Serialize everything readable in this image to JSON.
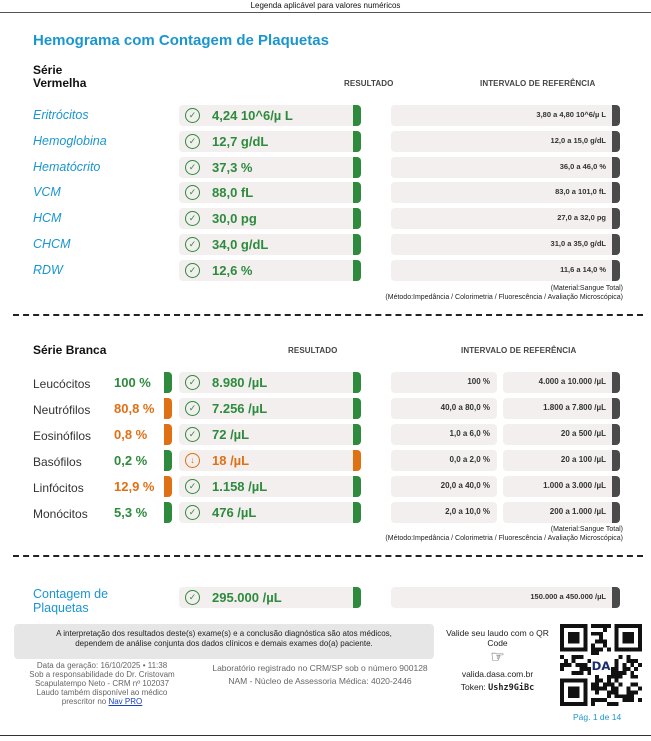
{
  "top_legend": "Legenda aplicável para valores numéricos",
  "title": "Hemograma com Contagem de Plaquetas",
  "serie_vermelha": {
    "title_line1": "Série",
    "title_line2": "Vermelha",
    "col_result": "RESULTADO",
    "col_ref": "INTERVALO DE REFERÊNCIA",
    "rows": [
      {
        "label": "Eritrócitos",
        "value": "4,24 10^6/µ L",
        "ref": "3,80 a 4,80 10^6/µ L"
      },
      {
        "label": "Hemoglobina",
        "value": "12,7 g/dL",
        "ref": "12,0 a 15,0 g/dL"
      },
      {
        "label": "Hematócrito",
        "value": "37,3 %",
        "ref": "36,0 a 46,0 %"
      },
      {
        "label": "VCM",
        "value": "88,0 fL",
        "ref": "83,0 a 101,0 fL"
      },
      {
        "label": "HCM",
        "value": "30,0 pg",
        "ref": "27,0 a 32,0 pg"
      },
      {
        "label": "CHCM",
        "value": "34,0 g/dL",
        "ref": "31,0 a 35,0 g/dL"
      },
      {
        "label": "RDW",
        "value": "12,6 %",
        "ref": "11,6 a 14,0 %"
      }
    ],
    "material": "(Material:Sangue Total)",
    "metodo": "(Método:Impedância / Colorimetria / Fluorescência / Avaliação Microscópica)"
  },
  "serie_branca": {
    "title": "Série Branca",
    "col_result": "RESULTADO",
    "col_ref": "INTERVALO DE REFERÊNCIA",
    "rows": [
      {
        "label": "Leucócitos",
        "pct": "100 %",
        "pct_status": "normal",
        "value": "8.980 /µL",
        "value_status": "normal",
        "ref_pct": "100 %",
        "ref_abs": "4.000 a 10.000 /µL"
      },
      {
        "label": "Neutrófilos",
        "pct": "80,8 %",
        "pct_status": "abnormal",
        "value": "7.256 /µL",
        "value_status": "normal",
        "ref_pct": "40,0 a 80,0 %",
        "ref_abs": "1.800 a 7.800 /µL"
      },
      {
        "label": "Eosinófilos",
        "pct": "0,8 %",
        "pct_status": "abnormal",
        "value": "72 /µL",
        "value_status": "normal",
        "ref_pct": "1,0 a 6,0 %",
        "ref_abs": "20 a 500 /µL"
      },
      {
        "label": "Basófilos",
        "pct": "0,2 %",
        "pct_status": "normal",
        "value": "18 /µL",
        "value_status": "low",
        "ref_pct": "0,0 a 2,0 %",
        "ref_abs": "20 a 100 /µL"
      },
      {
        "label": "Linfócitos",
        "pct": "12,9 %",
        "pct_status": "abnormal",
        "value": "1.158 /µL",
        "value_status": "normal",
        "ref_pct": "20,0 a 40,0 %",
        "ref_abs": "1.000 a 3.000 /µL"
      },
      {
        "label": "Monócitos",
        "pct": "5,3 %",
        "pct_status": "normal",
        "value": "476 /µL",
        "value_status": "normal",
        "ref_pct": "2,0 a 10,0 %",
        "ref_abs": "200 a 1.000 /µL"
      }
    ],
    "material": "(Material:Sangue Total)",
    "metodo": "(Método:Impedância / Colorimetria / Fluorescência / Avaliação Microscópica)"
  },
  "plaquetas": {
    "label_line1": "Contagem de",
    "label_line2": "Plaquetas",
    "value": "295.000 /µL",
    "ref": "150.000 a 450.000 /µL"
  },
  "footer": {
    "disclaimer_line1": "A interpretação dos resultados deste(s) exame(s) e a conclusão diagnóstica são atos médicos,",
    "disclaimer_line2": "dependem de análise conjunta dos dados clínicos e demais exames do(a) paciente.",
    "generation_line1": "Data da geração: 16/10/2025 • 11:38",
    "generation_line2": "Sob a responsabilidade do Dr. Cristovam",
    "generation_line3": "Scapulatempo Neto - CRM nº 102037",
    "generation_line4": "Laudo também disponível ao médico",
    "generation_line5_prefix": "prescritor no",
    "generation_link": "Nav PRO",
    "lab_line1": "Laboratório registrado no CRM/SP sob o número 900128",
    "lab_line2": "NAM - Núcleo de Assessoria Médica: 4020-2446",
    "validate_line1": "Valide seu laudo com o QR",
    "validate_line2": "Code",
    "validate_url": "valida.dasa.com.br",
    "token_label": "Token:",
    "token_value": "Ushz9GiBc",
    "qr_logo": "DA",
    "page": "Pág. 1 de 14"
  },
  "colors": {
    "accent": "#1a96cf",
    "normal": "#2e8b3d",
    "abnormal": "#e07014",
    "neutral": "#4a4a4a"
  }
}
